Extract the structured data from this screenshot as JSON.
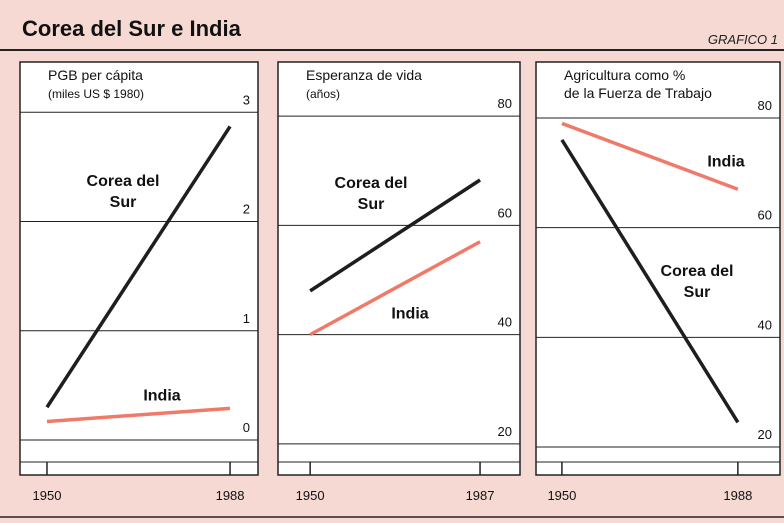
{
  "title": "Corea del Sur e India",
  "label": "GRAFICO 1",
  "chart_data": [
    {
      "type": "line",
      "title": "PGB per cápita",
      "subtitle": "(miles US $ 1980)",
      "x": [
        1950,
        1988
      ],
      "xlim": [
        1944.4,
        1993.8
      ],
      "xticks": [
        1950,
        1988
      ],
      "ylim": [
        -0.32,
        3.46
      ],
      "yticks": [
        0,
        1,
        2,
        3
      ],
      "series": [
        {
          "name": "Corea del Sur",
          "color": "#1e1e1e",
          "values": [
            0.3,
            2.87
          ]
        },
        {
          "name": "India",
          "color": "#f07a6a",
          "values": [
            0.17,
            0.29
          ]
        }
      ]
    },
    {
      "type": "line",
      "title": "Esperanza de vida",
      "subtitle": "(años)",
      "x": [
        1950,
        1987
      ],
      "xlim": [
        1943,
        1995.7
      ],
      "xticks": [
        1950,
        1987
      ],
      "ylim": [
        14.3,
        89.9
      ],
      "yticks": [
        20,
        40,
        60,
        80
      ],
      "series": [
        {
          "name": "Corea del Sur",
          "color": "#1e1e1e",
          "values": [
            48,
            68.3
          ]
        },
        {
          "name": "India",
          "color": "#f07a6a",
          "values": [
            40,
            57
          ]
        }
      ]
    },
    {
      "type": "line",
      "title": "Agricultura como %",
      "subtitle": "de la Fuerza de Trabajo",
      "x": [
        1950,
        1988
      ],
      "xlim": [
        1944.4,
        1997.1
      ],
      "xticks": [
        1950,
        1988
      ],
      "ylim": [
        14.9,
        90.2
      ],
      "yticks": [
        20,
        40,
        60,
        80
      ],
      "series": [
        {
          "name": "India",
          "color": "#f07a6a",
          "values": [
            79,
            67
          ]
        },
        {
          "name": "Corea del Sur",
          "color": "#1e1e1e",
          "values": [
            76,
            24.5
          ]
        }
      ]
    }
  ]
}
